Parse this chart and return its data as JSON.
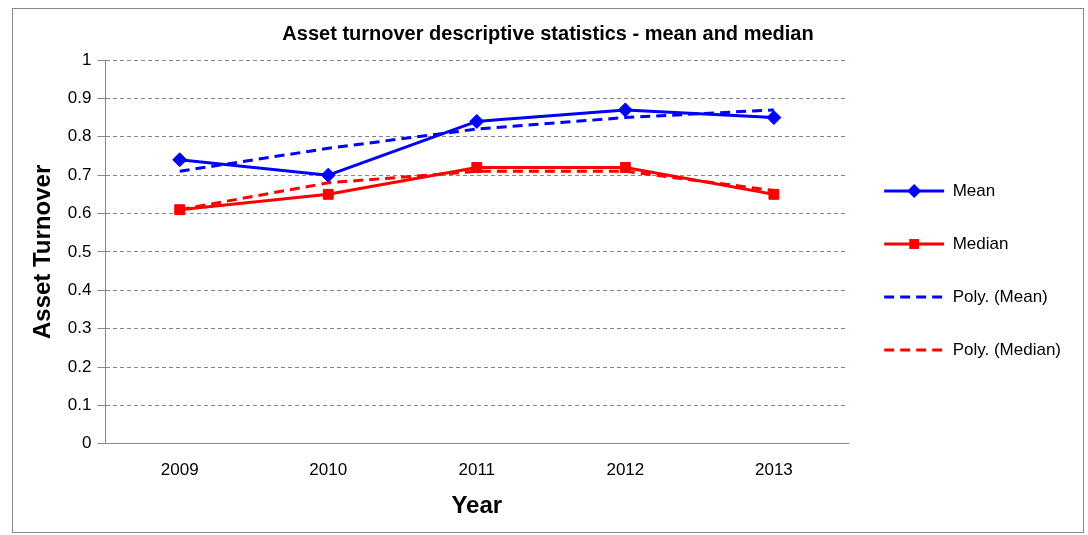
{
  "chart_data": {
    "type": "line",
    "title": "Asset turnover descriptive statistics - mean and median",
    "xlabel": "Year",
    "ylabel": "Asset Turnover",
    "categories": [
      "2009",
      "2010",
      "2011",
      "2012",
      "2013"
    ],
    "series": [
      {
        "name": "Mean",
        "color": "#0000ff",
        "values": [
          0.74,
          0.7,
          0.84,
          0.87,
          0.85
        ],
        "marker": "diamond",
        "line_style": "solid"
      },
      {
        "name": "Median",
        "color": "#ff0000",
        "values": [
          0.61,
          0.65,
          0.72,
          0.72,
          0.65
        ],
        "marker": "square",
        "line_style": "solid"
      },
      {
        "name": "Poly. (Mean)",
        "color": "#0000ff",
        "values": [
          0.71,
          0.77,
          0.82,
          0.85,
          0.87
        ],
        "marker": "none",
        "line_style": "dashed"
      },
      {
        "name": "Poly. (Median)",
        "color": "#ff0000",
        "values": [
          0.61,
          0.68,
          0.71,
          0.71,
          0.66
        ],
        "marker": "none",
        "line_style": "dashed"
      }
    ],
    "ylim": [
      0,
      1
    ],
    "yticks": [
      0,
      0.1,
      0.2,
      0.3,
      0.4,
      0.5,
      0.6,
      0.7,
      0.8,
      0.9,
      1
    ],
    "grid": "y",
    "legend": "right"
  }
}
